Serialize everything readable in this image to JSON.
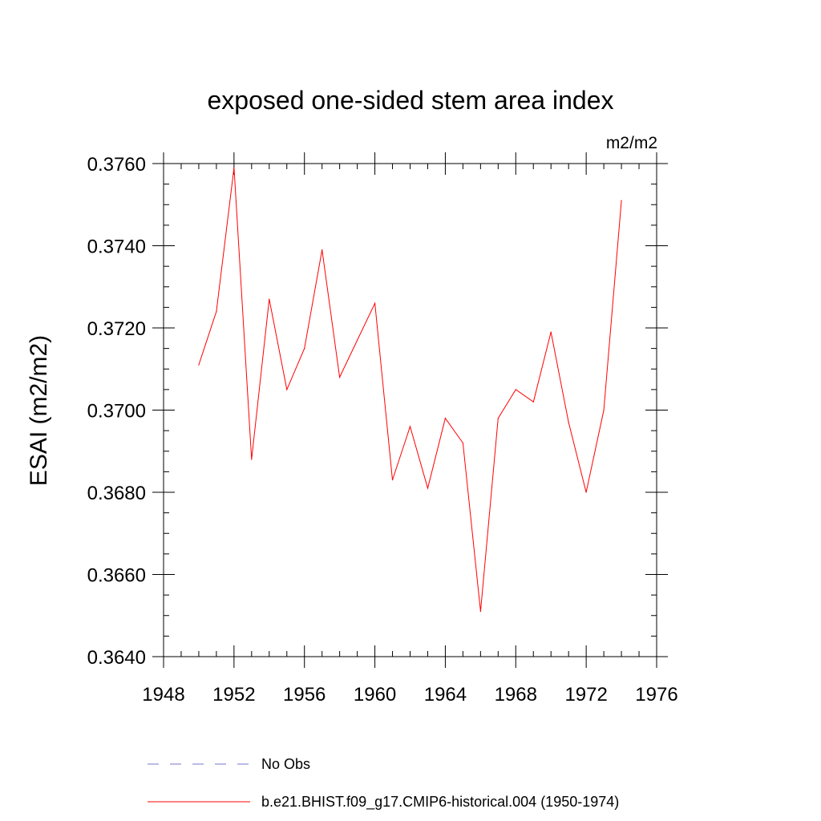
{
  "chart_data": {
    "type": "line",
    "title": "exposed one-sided stem area index",
    "units_label": "m2/m2",
    "ylabel": "ESAI  (m2/m2)",
    "xlabel": "",
    "xlim": [
      1948,
      1976
    ],
    "ylim": [
      0.364,
      0.376
    ],
    "x_ticks": [
      "1948",
      "1952",
      "1956",
      "1960",
      "1964",
      "1968",
      "1972",
      "1976"
    ],
    "y_ticks": [
      "0.3640",
      "0.3660",
      "0.3680",
      "0.3700",
      "0.3720",
      "0.3740",
      "0.3760"
    ],
    "grid": false,
    "legend_position": "bottom",
    "series": [
      {
        "name": "b.e21.BHIST.f09_g17.CMIP6-historical.004 (1950-1974)",
        "color": "#ff0000",
        "style": "solid",
        "x": [
          1950,
          1951,
          1952,
          1953,
          1954,
          1955,
          1956,
          1957,
          1958,
          1959,
          1960,
          1961,
          1962,
          1963,
          1964,
          1965,
          1966,
          1967,
          1968,
          1969,
          1970,
          1971,
          1972,
          1973,
          1974
        ],
        "y": [
          0.3711,
          0.3724,
          0.3759,
          0.3688,
          0.3727,
          0.3705,
          0.3715,
          0.3739,
          0.3708,
          0.3717,
          0.3726,
          0.3683,
          0.3696,
          0.3681,
          0.3698,
          0.3692,
          0.3651,
          0.3698,
          0.3705,
          0.3702,
          0.3719,
          0.3697,
          0.368,
          0.37,
          0.3751
        ]
      }
    ],
    "legend": [
      {
        "label": "No Obs",
        "color": "#7777cc",
        "style": "dashed"
      },
      {
        "label": "b.e21.BHIST.f09_g17.CMIP6-historical.004 (1950-1974)",
        "color": "#ff0000",
        "style": "solid"
      }
    ]
  }
}
